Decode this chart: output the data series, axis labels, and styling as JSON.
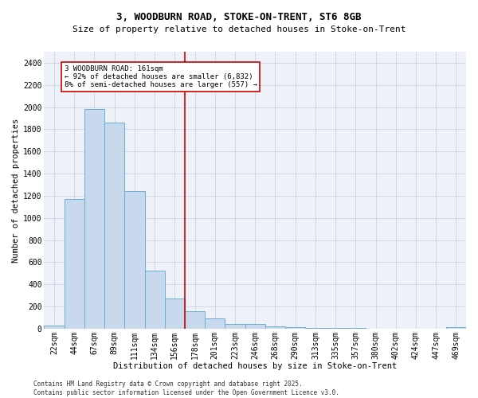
{
  "title": "3, WOODBURN ROAD, STOKE-ON-TRENT, ST6 8GB",
  "subtitle": "Size of property relative to detached houses in Stoke-on-Trent",
  "xlabel": "Distribution of detached houses by size in Stoke-on-Trent",
  "ylabel": "Number of detached properties",
  "bar_labels": [
    "22sqm",
    "44sqm",
    "67sqm",
    "89sqm",
    "111sqm",
    "134sqm",
    "156sqm",
    "178sqm",
    "201sqm",
    "223sqm",
    "246sqm",
    "268sqm",
    "290sqm",
    "313sqm",
    "335sqm",
    "357sqm",
    "380sqm",
    "402sqm",
    "424sqm",
    "447sqm",
    "469sqm"
  ],
  "bar_values": [
    28,
    1170,
    1980,
    1860,
    1240,
    520,
    275,
    155,
    90,
    45,
    40,
    20,
    10,
    5,
    3,
    3,
    2,
    2,
    2,
    2,
    15
  ],
  "bar_color": "#c9d9ed",
  "bar_edge_color": "#6baed6",
  "ylim": [
    0,
    2500
  ],
  "yticks": [
    0,
    200,
    400,
    600,
    800,
    1000,
    1200,
    1400,
    1600,
    1800,
    2000,
    2200,
    2400
  ],
  "vline_x": 6.5,
  "vline_color": "#cc0000",
  "annotation_text": "3 WOODBURN ROAD: 161sqm\n← 92% of detached houses are smaller (6,832)\n8% of semi-detached houses are larger (557) →",
  "footer_line1": "Contains HM Land Registry data © Crown copyright and database right 2025.",
  "footer_line2": "Contains public sector information licensed under the Open Government Licence v3.0.",
  "bg_color": "#ffffff",
  "plot_bg_color": "#eef2f8",
  "grid_color": "#c8d4e8",
  "title_fontsize": 9,
  "subtitle_fontsize": 8,
  "axis_label_fontsize": 7.5,
  "tick_fontsize": 7,
  "annotation_fontsize": 6.5,
  "footer_fontsize": 5.5
}
